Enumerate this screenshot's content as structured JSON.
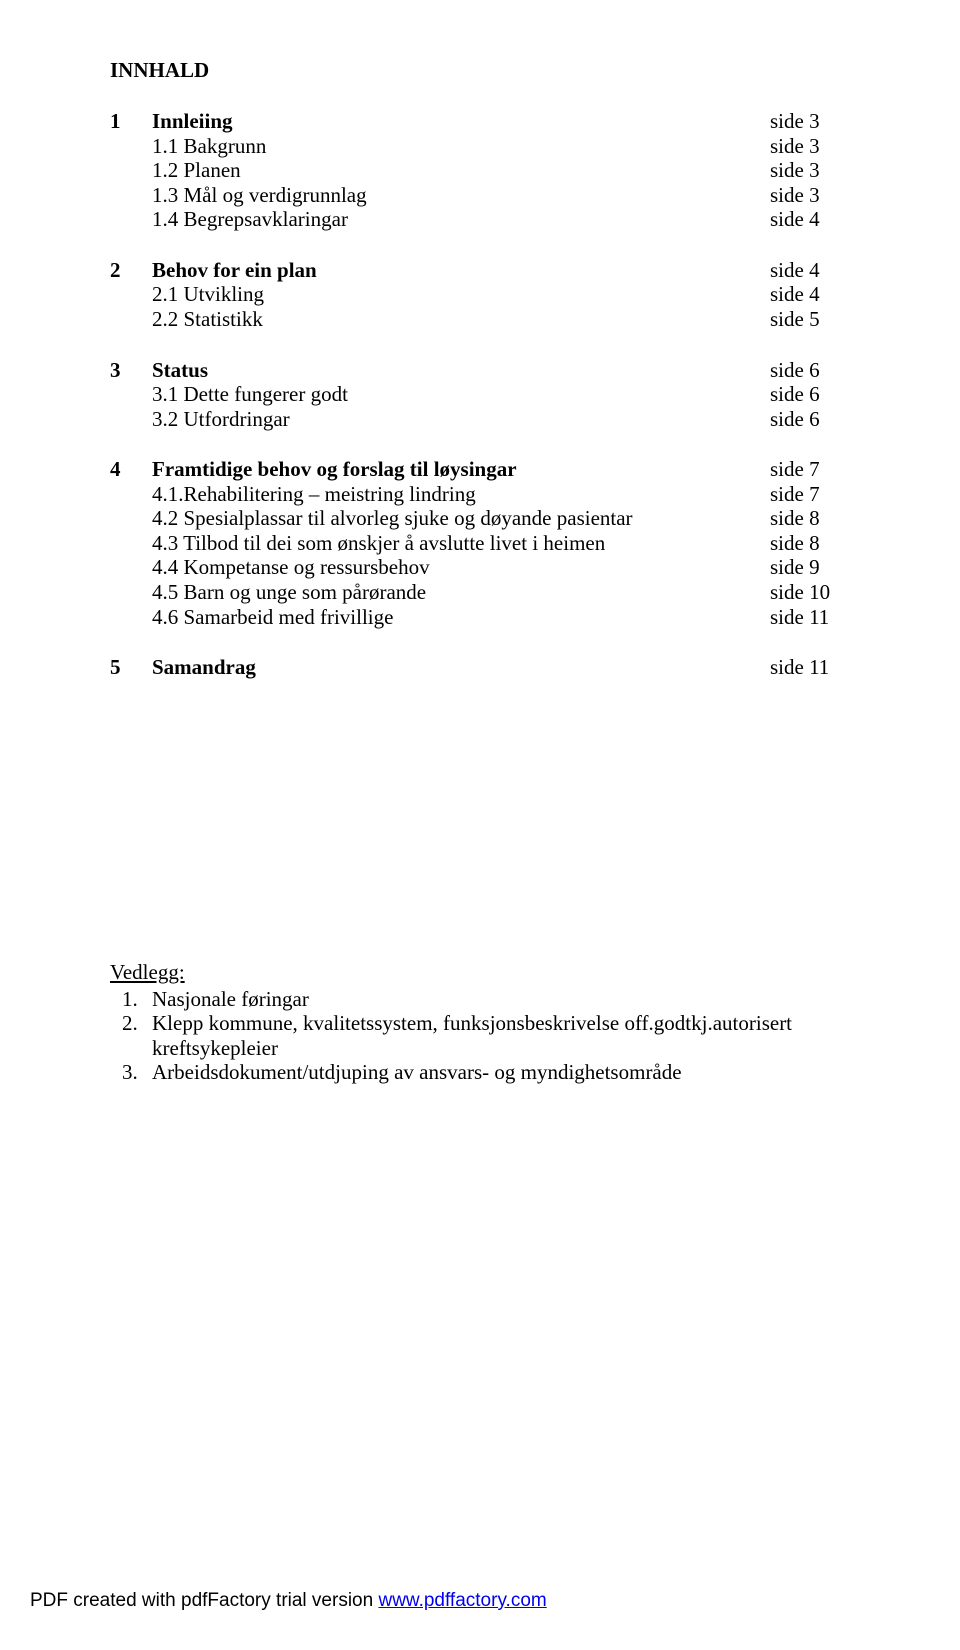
{
  "title": "INNHALD",
  "toc": {
    "sections": [
      {
        "items": [
          {
            "num": "1",
            "label": "Innleiing",
            "page": "side 3",
            "bold": true
          },
          {
            "num": "",
            "label": "1.1 Bakgrunn",
            "page": "side 3",
            "bold": false
          },
          {
            "num": "",
            "label": "1.2 Planen",
            "page": "side 3",
            "bold": false
          },
          {
            "num": "",
            "label": "1.3 Mål og verdigrunnlag",
            "page": "side 3",
            "bold": false
          },
          {
            "num": "",
            "label": "1.4 Begrepsavklaringar",
            "page": "side 4",
            "bold": false
          }
        ]
      },
      {
        "items": [
          {
            "num": "2",
            "label": "Behov for ein plan",
            "page": "side 4",
            "bold": true
          },
          {
            "num": "",
            "label": "2.1 Utvikling",
            "page": "side 4",
            "bold": false
          },
          {
            "num": "",
            "label": "2.2 Statistikk",
            "page": "side 5",
            "bold": false
          }
        ]
      },
      {
        "items": [
          {
            "num": "3",
            "label": "Status",
            "page": "side 6",
            "bold": true
          },
          {
            "num": "",
            "label": "3.1 Dette fungerer godt",
            "page": "side 6",
            "bold": false
          },
          {
            "num": "",
            "label": "3.2 Utfordringar",
            "page": "side 6",
            "bold": false
          }
        ]
      },
      {
        "items": [
          {
            "num": "4",
            "label": "Framtidige behov og forslag til løysingar",
            "page": "side 7",
            "bold": true
          },
          {
            "num": "",
            "label": "4.1.Rehabilitering – meistring lindring",
            "page": "side 7",
            "bold": false
          },
          {
            "num": "",
            "label": "4.2 Spesialplassar til alvorleg sjuke og døyande pasientar",
            "page": "side 8",
            "bold": false
          },
          {
            "num": "",
            "label": "4.3 Tilbod til dei som ønskjer å avslutte livet i heimen",
            "page": "side 8",
            "bold": false
          },
          {
            "num": "",
            "label": "4.4 Kompetanse og ressursbehov",
            "page": "side 9",
            "bold": false
          },
          {
            "num": "",
            "label": "4.5 Barn og unge som pårørande",
            "page": "side 10",
            "bold": false
          },
          {
            "num": "",
            "label": "4.6 Samarbeid med frivillige",
            "page": "side 11",
            "bold": false
          }
        ]
      },
      {
        "items": [
          {
            "num": "5",
            "label": "Samandrag",
            "page": "side 11",
            "bold": true
          }
        ]
      }
    ]
  },
  "vedlegg": {
    "title": "Vedlegg:",
    "items": [
      {
        "num": "1.",
        "text": "Nasjonale føringar"
      },
      {
        "num": "2.",
        "text": "Klepp kommune, kvalitetssystem, funksjonsbeskrivelse off.godtkj.autorisert kreftsykepleier"
      },
      {
        "num": "3.",
        "text": "Arbeidsdokument/utdjuping av ansvars- og myndighetsområde"
      }
    ]
  },
  "footer": {
    "prefix": "PDF created with pdfFactory trial version ",
    "link_text": "www.pdffactory.com"
  }
}
